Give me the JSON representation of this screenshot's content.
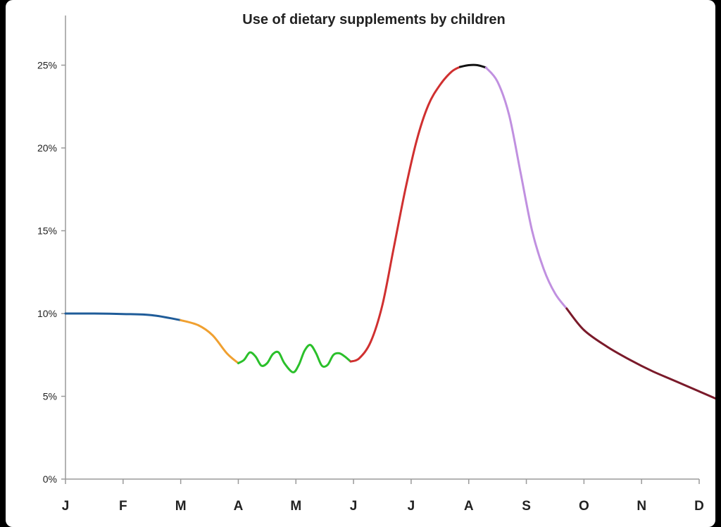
{
  "chart_data": {
    "type": "line",
    "title": "Use of dietary supplements by children",
    "xlabel": "",
    "ylabel": "",
    "categories": [
      "J",
      "F",
      "M",
      "A",
      "M",
      "J",
      "J",
      "A",
      "S",
      "O",
      "N",
      "D"
    ],
    "yticks": [
      "0%",
      "5%",
      "10%",
      "15%",
      "20%",
      "25%"
    ],
    "ylim": [
      0,
      28
    ],
    "grid": false,
    "legend": "none",
    "x_unit": "month index (Jan = 0, Dec = 11)",
    "series": [
      {
        "color": "#1f5c99",
        "points": [
          [
            0,
            10.0
          ],
          [
            0.5,
            10.0
          ],
          [
            1.0,
            9.97
          ],
          [
            1.5,
            9.9
          ],
          [
            2.0,
            9.6
          ]
        ]
      },
      {
        "color": "#f0a030",
        "points": [
          [
            2.0,
            9.6
          ],
          [
            2.3,
            9.3
          ],
          [
            2.55,
            8.7
          ],
          [
            2.8,
            7.6
          ],
          [
            3.0,
            7.0
          ]
        ]
      },
      {
        "color": "#2bc02b",
        "points": [
          [
            3.0,
            7.0
          ],
          [
            3.1,
            7.2
          ],
          [
            3.2,
            7.65
          ],
          [
            3.3,
            7.4
          ],
          [
            3.4,
            6.85
          ],
          [
            3.5,
            7.0
          ],
          [
            3.6,
            7.55
          ],
          [
            3.7,
            7.65
          ],
          [
            3.8,
            7.0
          ],
          [
            3.95,
            6.45
          ],
          [
            4.05,
            6.9
          ],
          [
            4.15,
            7.75
          ],
          [
            4.25,
            8.1
          ],
          [
            4.35,
            7.6
          ],
          [
            4.45,
            6.85
          ],
          [
            4.55,
            6.9
          ],
          [
            4.65,
            7.5
          ],
          [
            4.75,
            7.6
          ],
          [
            4.85,
            7.4
          ],
          [
            4.95,
            7.1
          ]
        ]
      },
      {
        "color": "#d03030",
        "points": [
          [
            4.95,
            7.1
          ],
          [
            5.1,
            7.3
          ],
          [
            5.3,
            8.3
          ],
          [
            5.5,
            10.5
          ],
          [
            5.7,
            14.0
          ],
          [
            5.9,
            17.5
          ],
          [
            6.1,
            20.5
          ],
          [
            6.3,
            22.6
          ],
          [
            6.5,
            23.8
          ],
          [
            6.7,
            24.6
          ],
          [
            6.85,
            24.9
          ]
        ]
      },
      {
        "color": "#111111",
        "points": [
          [
            6.85,
            24.9
          ],
          [
            7.0,
            25.0
          ],
          [
            7.15,
            25.0
          ],
          [
            7.3,
            24.85
          ]
        ]
      },
      {
        "color": "#c090e0",
        "points": [
          [
            7.3,
            24.85
          ],
          [
            7.5,
            24.0
          ],
          [
            7.7,
            22.0
          ],
          [
            7.9,
            18.5
          ],
          [
            8.1,
            15.0
          ],
          [
            8.3,
            12.7
          ],
          [
            8.5,
            11.2
          ],
          [
            8.7,
            10.3
          ]
        ]
      },
      {
        "color": "#7a1a2a",
        "points": [
          [
            8.7,
            10.3
          ],
          [
            9.0,
            9.0
          ],
          [
            9.4,
            8.0
          ],
          [
            9.8,
            7.2
          ],
          [
            10.2,
            6.5
          ],
          [
            10.6,
            5.9
          ],
          [
            11.0,
            5.3
          ],
          [
            11.4,
            4.7
          ],
          [
            11.6,
            4.5
          ]
        ]
      }
    ]
  }
}
